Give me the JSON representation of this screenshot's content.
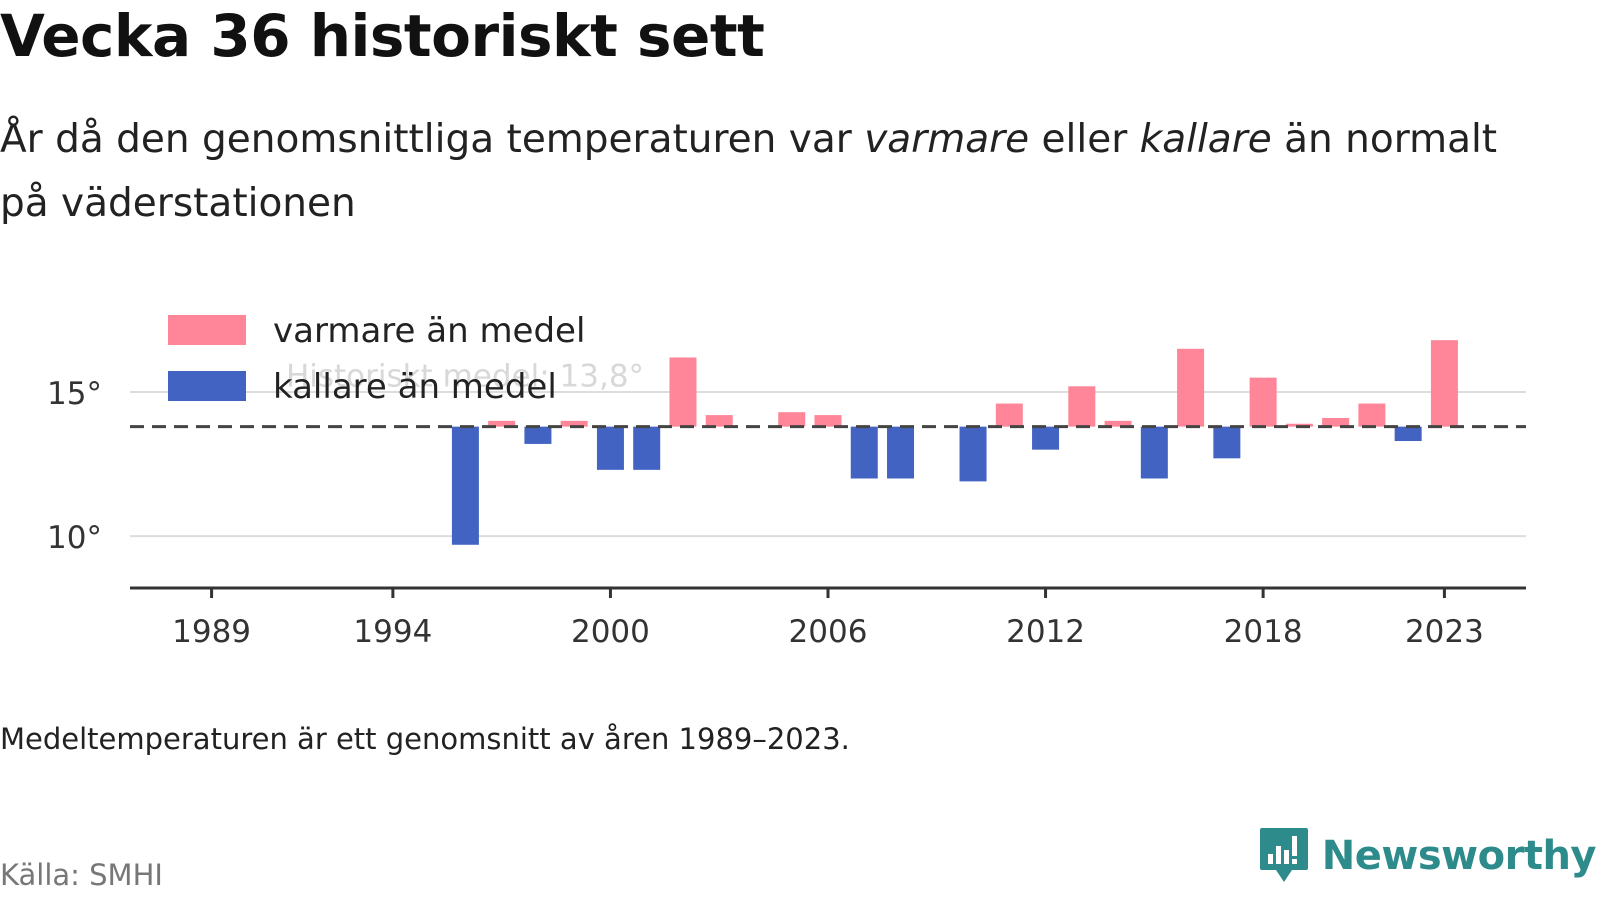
{
  "header": {
    "title": "Vecka 36 historiskt sett",
    "subtitle_parts": [
      "År då den genomsnittliga temperaturen var ",
      "varmare",
      " eller ",
      "kallare",
      " än normalt på väderstationen"
    ]
  },
  "footer": {
    "note": "Medeltemperaturen är ett genomsnitt av åren 1989–2023.",
    "source": "Källa: SMHI",
    "brand": "Newsworthy"
  },
  "colors": {
    "warm": "#ff8598",
    "cold": "#4363c2",
    "brand": "#2e8b8b"
  },
  "chart_data": {
    "type": "bar",
    "title": "Vecka 36 historiskt sett",
    "mean_line": 13.8,
    "mean_label": "Historiskt medel: 13,8°",
    "ylim": [
      8.2,
      17.5
    ],
    "xlim": [
      1986.75,
      2025.25
    ],
    "y_ticks": [
      {
        "value": 10,
        "label": "10°"
      },
      {
        "value": 15,
        "label": "15°"
      }
    ],
    "x_ticks": [
      1989,
      1994,
      2000,
      2006,
      2012,
      2018,
      2023
    ],
    "legend": [
      {
        "key": "warm",
        "label": "varmare än medel"
      },
      {
        "key": "cold",
        "label": "kallare än medel"
      }
    ],
    "legend_position": "top-left",
    "grid": true,
    "series": [
      {
        "x": 1996,
        "y": 9.7
      },
      {
        "x": 1997,
        "y": 14.0
      },
      {
        "x": 1998,
        "y": 13.2
      },
      {
        "x": 1999,
        "y": 14.0
      },
      {
        "x": 2000,
        "y": 12.3
      },
      {
        "x": 2001,
        "y": 12.3
      },
      {
        "x": 2002,
        "y": 16.2
      },
      {
        "x": 2003,
        "y": 14.2
      },
      {
        "x": 2005,
        "y": 14.3
      },
      {
        "x": 2006,
        "y": 14.2
      },
      {
        "x": 2007,
        "y": 12.0
      },
      {
        "x": 2008,
        "y": 12.0
      },
      {
        "x": 2010,
        "y": 11.9
      },
      {
        "x": 2011,
        "y": 14.6
      },
      {
        "x": 2012,
        "y": 13.0
      },
      {
        "x": 2013,
        "y": 15.2
      },
      {
        "x": 2014,
        "y": 14.0
      },
      {
        "x": 2015,
        "y": 12.0
      },
      {
        "x": 2016,
        "y": 16.5
      },
      {
        "x": 2017,
        "y": 12.7
      },
      {
        "x": 2018,
        "y": 15.5
      },
      {
        "x": 2019,
        "y": 13.9
      },
      {
        "x": 2020,
        "y": 14.1
      },
      {
        "x": 2021,
        "y": 14.6
      },
      {
        "x": 2022,
        "y": 13.3
      },
      {
        "x": 2023,
        "y": 16.8
      }
    ]
  }
}
